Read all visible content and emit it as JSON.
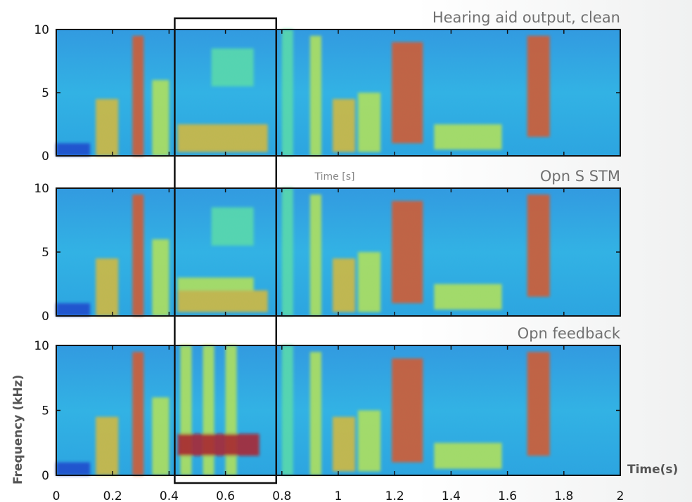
{
  "chart_data": {
    "type": "heatmap",
    "figure": "spectrogram comparison",
    "xlabel": "Time(s)",
    "ylabel": "Frequency (kHz)",
    "x_ticks": [
      "0",
      "0.2",
      "0.4",
      "0.6",
      "0.8",
      "1",
      "1.2",
      "1.4",
      "1.6",
      "1.8",
      "2"
    ],
    "xlim": [
      0,
      2
    ],
    "ylim": [
      0,
      10
    ],
    "y_ticks": [
      "0",
      "5",
      "10"
    ],
    "hidden_subplot_xlabel": "Time [s]",
    "highlight_window": {
      "x_start": 0.42,
      "x_end": 0.78,
      "label": ""
    },
    "colormap": [
      "#1a3cc8",
      "#2a8ce8",
      "#30c8e0",
      "#5ee8a0",
      "#c8f040",
      "#f0c020",
      "#f05010",
      "#c01008"
    ],
    "panels": [
      {
        "title": "Hearing aid output, clean",
        "events": [
          {
            "t0": 0.0,
            "t1": 0.12,
            "f0": 0.0,
            "f1": 1.0,
            "level": 0.05
          },
          {
            "t0": 0.14,
            "t1": 0.22,
            "f0": 0.0,
            "f1": 4.5,
            "level": 0.65
          },
          {
            "t0": 0.27,
            "t1": 0.31,
            "f0": 0.0,
            "f1": 9.5,
            "level": 0.85
          },
          {
            "t0": 0.34,
            "t1": 0.4,
            "f0": 0.0,
            "f1": 6.0,
            "level": 0.55
          },
          {
            "t0": 0.43,
            "t1": 0.75,
            "f0": 0.3,
            "f1": 2.5,
            "level": 0.72
          },
          {
            "t0": 0.55,
            "t1": 0.7,
            "f0": 5.5,
            "f1": 8.5,
            "level": 0.4
          },
          {
            "t0": 0.8,
            "t1": 0.84,
            "f0": 0.0,
            "f1": 10.0,
            "level": 0.45
          },
          {
            "t0": 0.9,
            "t1": 0.94,
            "f0": 0.0,
            "f1": 9.5,
            "level": 0.55
          },
          {
            "t0": 0.98,
            "t1": 1.06,
            "f0": 0.3,
            "f1": 4.5,
            "level": 0.65
          },
          {
            "t0": 1.07,
            "t1": 1.15,
            "f0": 0.3,
            "f1": 5.0,
            "level": 0.6
          },
          {
            "t0": 1.19,
            "t1": 1.3,
            "f0": 1.0,
            "f1": 9.0,
            "level": 0.82
          },
          {
            "t0": 1.34,
            "t1": 1.58,
            "f0": 0.5,
            "f1": 2.5,
            "level": 0.6
          },
          {
            "t0": 1.67,
            "t1": 1.75,
            "f0": 1.5,
            "f1": 9.5,
            "level": 0.82
          }
        ]
      },
      {
        "title": "Opn S STM",
        "events": [
          {
            "t0": 0.0,
            "t1": 0.12,
            "f0": 0.0,
            "f1": 1.0,
            "level": 0.05
          },
          {
            "t0": 0.14,
            "t1": 0.22,
            "f0": 0.0,
            "f1": 4.5,
            "level": 0.65
          },
          {
            "t0": 0.27,
            "t1": 0.31,
            "f0": 0.0,
            "f1": 9.5,
            "level": 0.85
          },
          {
            "t0": 0.34,
            "t1": 0.4,
            "f0": 0.0,
            "f1": 6.0,
            "level": 0.55
          },
          {
            "t0": 0.43,
            "t1": 0.75,
            "f0": 0.3,
            "f1": 2.0,
            "level": 0.68
          },
          {
            "t0": 0.43,
            "t1": 0.7,
            "f0": 2.0,
            "f1": 3.0,
            "level": 0.55
          },
          {
            "t0": 0.55,
            "t1": 0.7,
            "f0": 5.5,
            "f1": 8.5,
            "level": 0.4
          },
          {
            "t0": 0.8,
            "t1": 0.84,
            "f0": 0.0,
            "f1": 10.0,
            "level": 0.45
          },
          {
            "t0": 0.9,
            "t1": 0.94,
            "f0": 0.0,
            "f1": 9.5,
            "level": 0.55
          },
          {
            "t0": 0.98,
            "t1": 1.06,
            "f0": 0.3,
            "f1": 4.5,
            "level": 0.65
          },
          {
            "t0": 1.07,
            "t1": 1.15,
            "f0": 0.3,
            "f1": 5.0,
            "level": 0.6
          },
          {
            "t0": 1.19,
            "t1": 1.3,
            "f0": 1.0,
            "f1": 9.0,
            "level": 0.82
          },
          {
            "t0": 1.34,
            "t1": 1.58,
            "f0": 0.5,
            "f1": 2.5,
            "level": 0.6
          },
          {
            "t0": 1.67,
            "t1": 1.75,
            "f0": 1.5,
            "f1": 9.5,
            "level": 0.82
          }
        ]
      },
      {
        "title": "Opn feedback",
        "events": [
          {
            "t0": 0.0,
            "t1": 0.12,
            "f0": 0.0,
            "f1": 1.0,
            "level": 0.05
          },
          {
            "t0": 0.14,
            "t1": 0.22,
            "f0": 0.0,
            "f1": 4.5,
            "level": 0.65
          },
          {
            "t0": 0.27,
            "t1": 0.31,
            "f0": 0.0,
            "f1": 9.5,
            "level": 0.85
          },
          {
            "t0": 0.34,
            "t1": 0.4,
            "f0": 0.0,
            "f1": 6.0,
            "level": 0.55
          },
          {
            "t0": 0.44,
            "t1": 0.48,
            "f0": 0.0,
            "f1": 10.0,
            "level": 0.6
          },
          {
            "t0": 0.52,
            "t1": 0.56,
            "f0": 0.0,
            "f1": 10.0,
            "level": 0.55
          },
          {
            "t0": 0.6,
            "t1": 0.64,
            "f0": 0.0,
            "f1": 10.0,
            "level": 0.5
          },
          {
            "t0": 0.43,
            "t1": 0.72,
            "f0": 1.5,
            "f1": 3.2,
            "level": 0.97
          },
          {
            "t0": 0.8,
            "t1": 0.84,
            "f0": 0.0,
            "f1": 10.0,
            "level": 0.45
          },
          {
            "t0": 0.9,
            "t1": 0.94,
            "f0": 0.0,
            "f1": 9.5,
            "level": 0.55
          },
          {
            "t0": 0.98,
            "t1": 1.06,
            "f0": 0.3,
            "f1": 4.5,
            "level": 0.65
          },
          {
            "t0": 1.07,
            "t1": 1.15,
            "f0": 0.3,
            "f1": 5.0,
            "level": 0.6
          },
          {
            "t0": 1.19,
            "t1": 1.3,
            "f0": 1.0,
            "f1": 9.0,
            "level": 0.82
          },
          {
            "t0": 1.34,
            "t1": 1.58,
            "f0": 0.5,
            "f1": 2.5,
            "level": 0.6
          },
          {
            "t0": 1.67,
            "t1": 1.75,
            "f0": 1.5,
            "f1": 9.5,
            "level": 0.82
          }
        ]
      }
    ]
  }
}
